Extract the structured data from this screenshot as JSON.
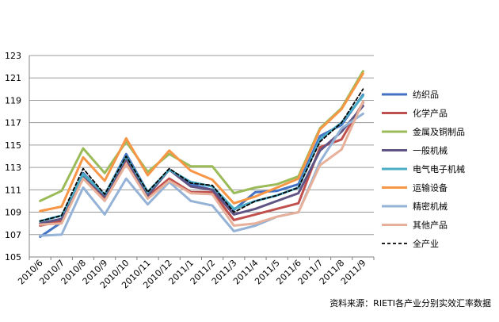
{
  "chart_data": {
    "type": "line",
    "title": "",
    "xlabel": "",
    "ylabel": "",
    "ylim": [
      105,
      123
    ],
    "y_ticks": [
      105,
      107,
      109,
      111,
      113,
      115,
      117,
      119,
      121,
      123
    ],
    "grid": "horizontal",
    "legend_position": "right",
    "categories": [
      "2010/6",
      "2010/7",
      "2010/8",
      "2010/9",
      "2010/10",
      "2010/11",
      "2010/12",
      "2011/1",
      "2011/2",
      "2011/3",
      "2011/4",
      "2011/5",
      "2011/6",
      "2011/7",
      "2011/8",
      "2011/9"
    ],
    "series": [
      {
        "name": "纺织品",
        "color": "#4472C4",
        "dashed": false,
        "values": [
          106.8,
          108.1,
          112.5,
          110.5,
          114.2,
          110.8,
          112.8,
          111.5,
          111.0,
          109.2,
          110.8,
          110.9,
          111.5,
          115.8,
          116.8,
          119.5
        ]
      },
      {
        "name": "化学产品",
        "color": "#C0504D",
        "dashed": false,
        "values": [
          107.8,
          108.2,
          112.2,
          110.3,
          113.7,
          110.4,
          112.0,
          110.8,
          110.8,
          108.3,
          108.8,
          109.3,
          109.8,
          114.8,
          115.5,
          118.8
        ]
      },
      {
        "name": "金属及铜制品",
        "color": "#9BBB59",
        "dashed": false,
        "values": [
          110.0,
          110.9,
          114.7,
          112.5,
          115.3,
          112.6,
          114.2,
          113.1,
          113.1,
          110.7,
          111.2,
          111.5,
          112.2,
          116.5,
          118.3,
          121.6
        ]
      },
      {
        "name": "一般机械",
        "color": "#5F5484",
        "dashed": false,
        "values": [
          108.0,
          108.4,
          112.3,
          110.4,
          113.8,
          110.5,
          112.8,
          111.3,
          111.0,
          108.8,
          109.3,
          110.0,
          110.7,
          114.5,
          116.2,
          118.5
        ]
      },
      {
        "name": "电气电子机械",
        "color": "#4BACC6",
        "dashed": false,
        "values": [
          108.2,
          108.7,
          112.4,
          110.6,
          114.0,
          110.8,
          112.8,
          111.7,
          111.3,
          109.3,
          110.0,
          110.5,
          111.2,
          115.5,
          117.0,
          119.4
        ]
      },
      {
        "name": "运输设备",
        "color": "#F79646",
        "dashed": false,
        "values": [
          109.1,
          109.5,
          113.9,
          111.8,
          115.6,
          112.3,
          114.5,
          112.7,
          111.9,
          109.8,
          110.4,
          111.2,
          112.0,
          116.4,
          118.2,
          121.4
        ]
      },
      {
        "name": "精密机械",
        "color": "#95B3D7",
        "dashed": false,
        "values": [
          106.9,
          107.0,
          111.2,
          108.8,
          112.0,
          109.7,
          111.7,
          110.0,
          109.6,
          107.3,
          107.8,
          108.6,
          109.0,
          113.5,
          116.5,
          117.8
        ]
      },
      {
        "name": "其他产品",
        "color": "#E6B09A",
        "dashed": false,
        "values": [
          107.9,
          108.0,
          112.0,
          110.0,
          113.3,
          110.2,
          111.8,
          110.7,
          110.6,
          107.8,
          108.0,
          108.6,
          109.0,
          113.2,
          114.6,
          118.9
        ]
      },
      {
        "name": "全产业",
        "color": "#000000",
        "dashed": true,
        "values": [
          108.2,
          108.7,
          112.9,
          110.6,
          114.0,
          110.8,
          112.9,
          111.6,
          111.4,
          109.0,
          110.0,
          110.5,
          111.2,
          115.3,
          117.0,
          120.0
        ]
      }
    ]
  },
  "source_note": "资料来源：RIETI各产业分别实效汇率数据"
}
